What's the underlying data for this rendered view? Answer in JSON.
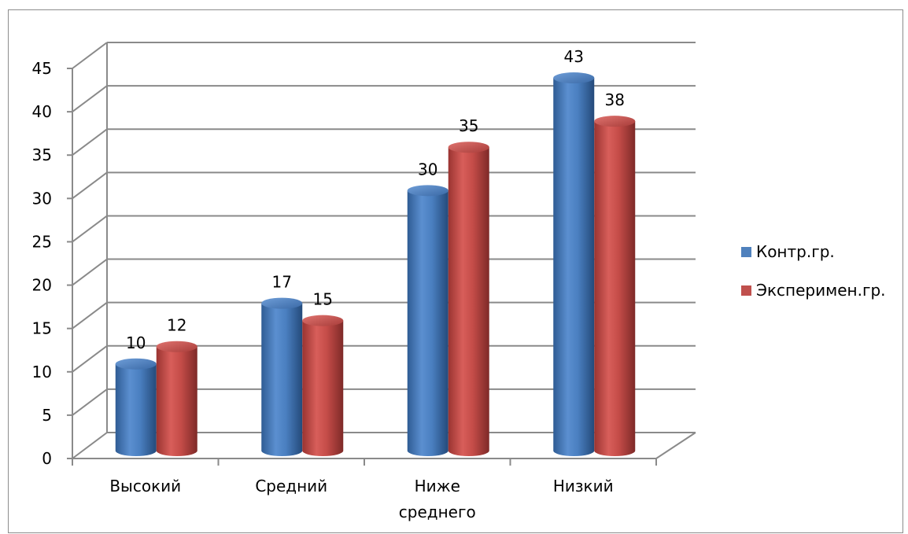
{
  "chart_data": {
    "type": "bar",
    "categories": [
      "Высокий",
      "Средний",
      "Ниже среднего",
      "Низкий"
    ],
    "category_lines": [
      [
        "Высокий"
      ],
      [
        "Средний"
      ],
      [
        "Ниже",
        "среднего"
      ],
      [
        "Низкий"
      ]
    ],
    "series": [
      {
        "name": "Контр.гр.",
        "values": [
          10,
          17,
          30,
          43
        ],
        "color": "#4f81bd"
      },
      {
        "name": "Эксперимен.гр.",
        "values": [
          12,
          15,
          35,
          38
        ],
        "color": "#c0504d"
      }
    ],
    "yticks": [
      0,
      5,
      10,
      15,
      20,
      25,
      30,
      35,
      40,
      45
    ],
    "ylim": [
      0,
      45
    ],
    "grid": true,
    "legend_position": "right",
    "style": "3d-cylinder"
  }
}
